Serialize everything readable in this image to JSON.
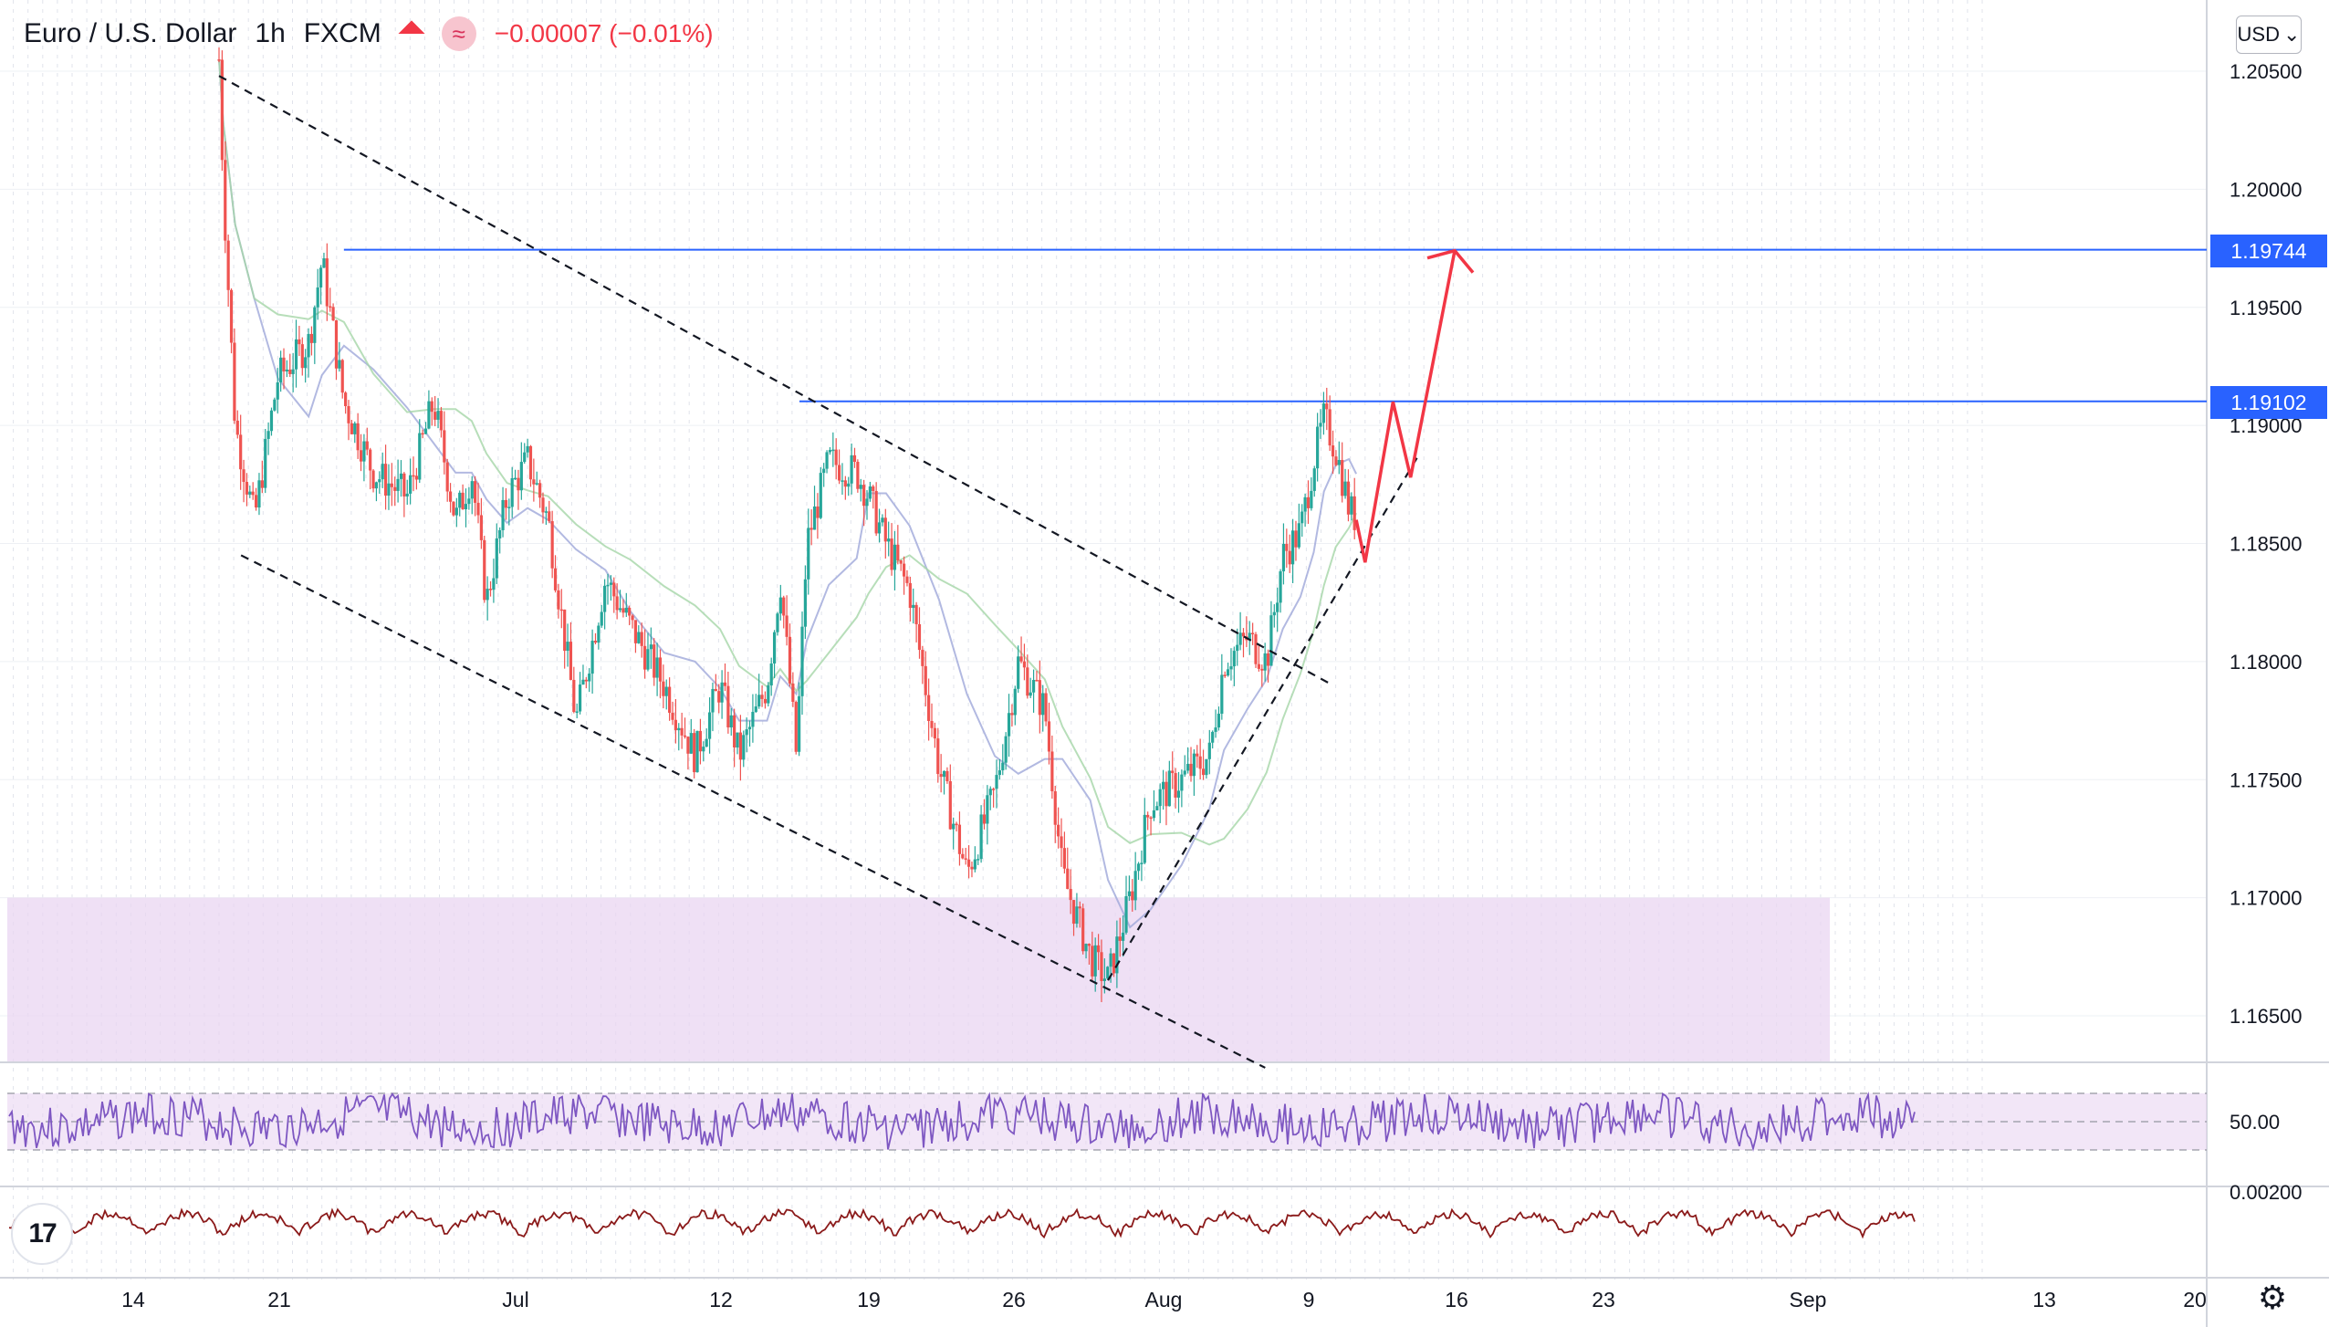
{
  "header": {
    "symbol": "Euro / U.S. Dollar",
    "interval": "1h",
    "exchange": "FXCM",
    "change": "−0.00007 (−0.01%)",
    "indicator_icon": "≈"
  },
  "currency_button": {
    "label": "USD",
    "icon": "chevron-down"
  },
  "colors": {
    "up": "#26a69a",
    "down": "#ef5350",
    "level": "#2962ff",
    "zone": "#e9d6f2",
    "rsi": "#7e57c2",
    "osc": "#8b1a1a",
    "projection": "#f23645"
  },
  "price_tags": [
    {
      "label": "1.19744",
      "value": 1.19744
    },
    {
      "label": "1.19102",
      "value": 1.19102
    }
  ],
  "chart_data": {
    "type": "candlestick",
    "instrument": "Euro / U.S. Dollar",
    "timeframe": "1h",
    "y_axis_ticks": [
      "1.20500",
      "1.20000",
      "1.19500",
      "1.19000",
      "1.18500",
      "1.18000",
      "1.17500",
      "1.17000",
      "1.16500"
    ],
    "ylim": [
      1.163,
      1.2075
    ],
    "x_axis_ticks": [
      "14",
      "21",
      "Jul",
      "12",
      "19",
      "26",
      "Aug",
      "9",
      "16",
      "23",
      "Sep",
      "13",
      "20"
    ],
    "horizontal_levels": [
      1.19744,
      1.19102
    ],
    "demand_zone": {
      "from": 1.163,
      "to": 1.17
    },
    "price_path": [
      {
        "t": 0.0,
        "p": 1.2055
      },
      {
        "t": 0.3,
        "p": 1.2
      },
      {
        "t": 1.1,
        "p": 1.19
      },
      {
        "t": 2.4,
        "p": 1.186
      },
      {
        "t": 4.0,
        "p": 1.192
      },
      {
        "t": 6.1,
        "p": 1.1935
      },
      {
        "t": 7.0,
        "p": 1.197
      },
      {
        "t": 8.5,
        "p": 1.191
      },
      {
        "t": 10.5,
        "p": 1.188
      },
      {
        "t": 12.8,
        "p": 1.187
      },
      {
        "t": 14.6,
        "p": 1.191
      },
      {
        "t": 16.1,
        "p": 1.186
      },
      {
        "t": 17.2,
        "p": 1.188
      },
      {
        "t": 18.2,
        "p": 1.1825
      },
      {
        "t": 19.6,
        "p": 1.187
      },
      {
        "t": 21.0,
        "p": 1.1885
      },
      {
        "t": 22.4,
        "p": 1.186
      },
      {
        "t": 24.3,
        "p": 1.1775
      },
      {
        "t": 26.3,
        "p": 1.1835
      },
      {
        "t": 28.0,
        "p": 1.1815
      },
      {
        "t": 30.3,
        "p": 1.179
      },
      {
        "t": 32.4,
        "p": 1.176
      },
      {
        "t": 34.1,
        "p": 1.179
      },
      {
        "t": 35.4,
        "p": 1.176
      },
      {
        "t": 37.3,
        "p": 1.179
      },
      {
        "t": 38.2,
        "p": 1.1835
      },
      {
        "t": 39.3,
        "p": 1.176
      },
      {
        "t": 40.0,
        "p": 1.185
      },
      {
        "t": 41.5,
        "p": 1.1885
      },
      {
        "t": 43.4,
        "p": 1.188
      },
      {
        "t": 44.2,
        "p": 1.187
      },
      {
        "t": 45.4,
        "p": 1.185
      },
      {
        "t": 47.0,
        "p": 1.183
      },
      {
        "t": 49.0,
        "p": 1.1755
      },
      {
        "t": 50.9,
        "p": 1.171
      },
      {
        "t": 52.8,
        "p": 1.1745
      },
      {
        "t": 54.4,
        "p": 1.18
      },
      {
        "t": 56.2,
        "p": 1.178
      },
      {
        "t": 57.4,
        "p": 1.171
      },
      {
        "t": 59.3,
        "p": 1.1675
      },
      {
        "t": 60.5,
        "p": 1.1665
      },
      {
        "t": 62.0,
        "p": 1.17
      },
      {
        "t": 63.4,
        "p": 1.174
      },
      {
        "t": 65.5,
        "p": 1.175
      },
      {
        "t": 67.4,
        "p": 1.176
      },
      {
        "t": 68.4,
        "p": 1.18
      },
      {
        "t": 70.0,
        "p": 1.181
      },
      {
        "t": 71.3,
        "p": 1.18
      },
      {
        "t": 72.4,
        "p": 1.1845
      },
      {
        "t": 73.6,
        "p": 1.1855
      },
      {
        "t": 74.5,
        "p": 1.1885
      },
      {
        "t": 75.2,
        "p": 1.1903
      },
      {
        "t": 76.0,
        "p": 1.189
      },
      {
        "t": 76.9,
        "p": 1.1865
      },
      {
        "t": 77.4,
        "p": 1.186
      }
    ],
    "projection": [
      {
        "t": 77.4,
        "p": 1.186
      },
      {
        "t": 78.0,
        "p": 1.1842
      },
      {
        "t": 79.9,
        "p": 1.191
      },
      {
        "t": 81.1,
        "p": 1.1878
      },
      {
        "t": 84.1,
        "p": 1.1974
      }
    ],
    "trendlines": [
      {
        "style": "dashed",
        "from": {
          "t": 0.0,
          "p": 1.2048
        },
        "to": {
          "t": 75.8,
          "p": 1.179
        }
      },
      {
        "style": "dashed",
        "from": {
          "t": 1.5,
          "p": 1.1845
        },
        "to": {
          "t": 71.2,
          "p": 1.1628
        }
      },
      {
        "style": "dashed",
        "from": {
          "t": 60.5,
          "p": 1.1665
        },
        "to": {
          "t": 81.6,
          "p": 1.1887
        }
      }
    ],
    "rsi_panel": {
      "tick_label": "50.00",
      "band_upper": 70,
      "band_lower": 30
    },
    "oscillator_panel": {
      "tick_label": "0.00200"
    }
  }
}
